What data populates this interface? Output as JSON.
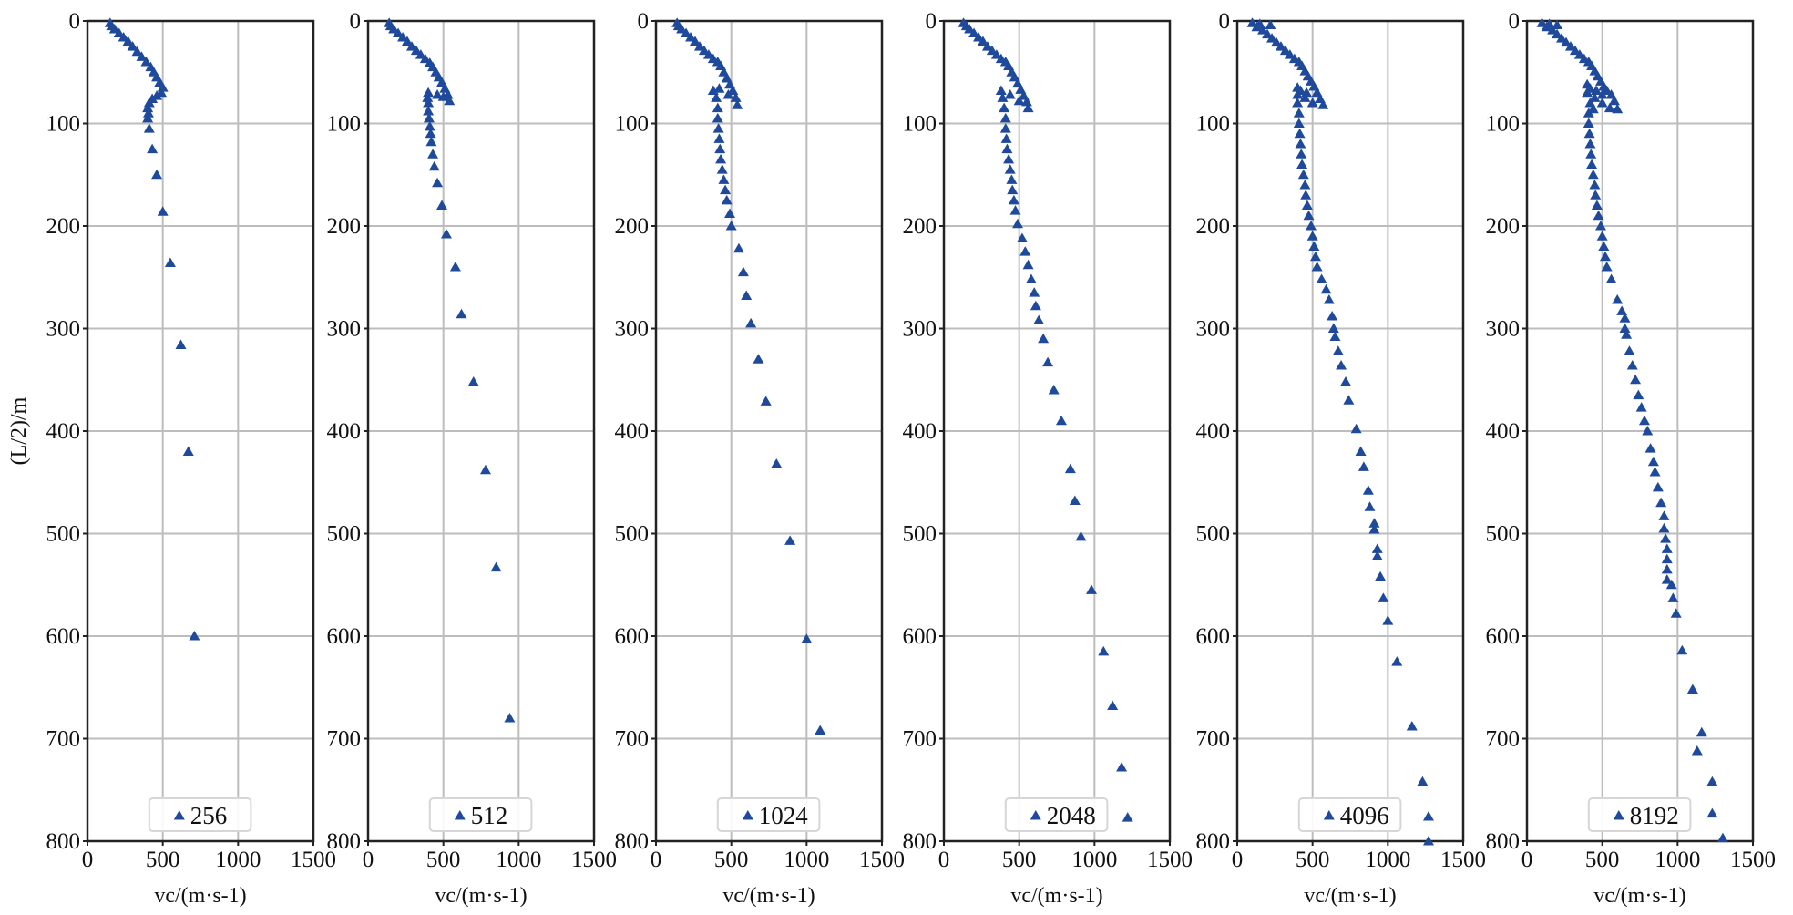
{
  "chart_data": [
    {
      "type": "scatter",
      "legend": "256",
      "marker": "triangle",
      "color": "#1f4a9c",
      "xlabel": "vc/(m·s-1)",
      "ylabel": "(L/2)/m",
      "xlim": [
        0,
        1500
      ],
      "ylim": [
        800,
        0
      ],
      "xticks": [
        0,
        500,
        1000,
        1500
      ],
      "yticks": [
        0,
        100,
        200,
        300,
        400,
        500,
        600,
        700,
        800
      ],
      "grid": true,
      "legend_position": "bottom-center",
      "points": [
        [
          150,
          2
        ],
        [
          160,
          5
        ],
        [
          180,
          8
        ],
        [
          210,
          12
        ],
        [
          240,
          16
        ],
        [
          270,
          20
        ],
        [
          300,
          25
        ],
        [
          330,
          30
        ],
        [
          360,
          35
        ],
        [
          390,
          40
        ],
        [
          420,
          45
        ],
        [
          440,
          50
        ],
        [
          460,
          55
        ],
        [
          480,
          60
        ],
        [
          500,
          65
        ],
        [
          490,
          70
        ],
        [
          460,
          73
        ],
        [
          430,
          76
        ],
        [
          410,
          80
        ],
        [
          400,
          85
        ],
        [
          405,
          90
        ],
        [
          400,
          95
        ],
        [
          410,
          105
        ],
        [
          430,
          125
        ],
        [
          460,
          150
        ],
        [
          500,
          186
        ],
        [
          550,
          236
        ],
        [
          620,
          316
        ],
        [
          670,
          420
        ],
        [
          710,
          600
        ]
      ]
    },
    {
      "type": "scatter",
      "legend": "512",
      "marker": "triangle",
      "color": "#1f4a9c",
      "xlabel": "vc/(m·s-1)",
      "ylabel": "",
      "xlim": [
        0,
        1500
      ],
      "ylim": [
        800,
        0
      ],
      "xticks": [
        0,
        500,
        1000,
        1500
      ],
      "yticks": [
        0,
        100,
        200,
        300,
        400,
        500,
        600,
        700,
        800
      ],
      "grid": true,
      "legend_position": "bottom-center",
      "points": [
        [
          140,
          2
        ],
        [
          150,
          5
        ],
        [
          170,
          8
        ],
        [
          200,
          12
        ],
        [
          230,
          16
        ],
        [
          260,
          20
        ],
        [
          290,
          25
        ],
        [
          320,
          29
        ],
        [
          350,
          33
        ],
        [
          380,
          37
        ],
        [
          410,
          41
        ],
        [
          430,
          45
        ],
        [
          450,
          50
        ],
        [
          470,
          55
        ],
        [
          490,
          60
        ],
        [
          510,
          66
        ],
        [
          530,
          72
        ],
        [
          540,
          78
        ],
        [
          500,
          74
        ],
        [
          460,
          72
        ],
        [
          400,
          70
        ],
        [
          395,
          75
        ],
        [
          400,
          80
        ],
        [
          400,
          88
        ],
        [
          405,
          95
        ],
        [
          410,
          103
        ],
        [
          415,
          110
        ],
        [
          420,
          118
        ],
        [
          430,
          130
        ],
        [
          440,
          142
        ],
        [
          460,
          158
        ],
        [
          490,
          180
        ],
        [
          520,
          208
        ],
        [
          580,
          240
        ],
        [
          620,
          286
        ],
        [
          700,
          352
        ],
        [
          780,
          438
        ],
        [
          850,
          533
        ],
        [
          940,
          680
        ]
      ]
    },
    {
      "type": "scatter",
      "legend": "1024",
      "marker": "triangle",
      "color": "#1f4a9c",
      "xlabel": "vc/(m·s-1)",
      "ylabel": "",
      "xlim": [
        0,
        1500
      ],
      "ylim": [
        800,
        0
      ],
      "xticks": [
        0,
        500,
        1000,
        1500
      ],
      "yticks": [
        0,
        100,
        200,
        300,
        400,
        500,
        600,
        700,
        800
      ],
      "grid": true,
      "legend_position": "bottom-center",
      "points": [
        [
          140,
          2
        ],
        [
          150,
          5
        ],
        [
          170,
          8
        ],
        [
          200,
          12
        ],
        [
          230,
          16
        ],
        [
          260,
          20
        ],
        [
          290,
          25
        ],
        [
          320,
          29
        ],
        [
          350,
          33
        ],
        [
          380,
          37
        ],
        [
          410,
          40
        ],
        [
          430,
          44
        ],
        [
          450,
          50
        ],
        [
          470,
          56
        ],
        [
          490,
          62
        ],
        [
          510,
          68
        ],
        [
          530,
          75
        ],
        [
          540,
          82
        ],
        [
          480,
          72
        ],
        [
          420,
          66
        ],
        [
          380,
          68
        ],
        [
          400,
          75
        ],
        [
          410,
          85
        ],
        [
          410,
          95
        ],
        [
          415,
          105
        ],
        [
          420,
          115
        ],
        [
          425,
          125
        ],
        [
          430,
          135
        ],
        [
          440,
          145
        ],
        [
          450,
          155
        ],
        [
          460,
          165
        ],
        [
          470,
          175
        ],
        [
          490,
          188
        ],
        [
          500,
          200
        ],
        [
          550,
          222
        ],
        [
          580,
          245
        ],
        [
          600,
          268
        ],
        [
          630,
          295
        ],
        [
          680,
          330
        ],
        [
          730,
          371
        ],
        [
          800,
          432
        ],
        [
          890,
          507
        ],
        [
          1000,
          603
        ],
        [
          1090,
          692
        ]
      ]
    },
    {
      "type": "scatter",
      "legend": "2048",
      "marker": "triangle",
      "color": "#1f4a9c",
      "xlabel": "vc/(m·s-1)",
      "ylabel": "",
      "xlim": [
        0,
        1500
      ],
      "ylim": [
        800,
        0
      ],
      "xticks": [
        0,
        500,
        1000,
        1500
      ],
      "yticks": [
        0,
        100,
        200,
        300,
        400,
        500,
        600,
        700,
        800
      ],
      "grid": true,
      "legend_position": "bottom-center",
      "points": [
        [
          130,
          2
        ],
        [
          150,
          5
        ],
        [
          170,
          8
        ],
        [
          200,
          12
        ],
        [
          230,
          16
        ],
        [
          260,
          20
        ],
        [
          290,
          25
        ],
        [
          320,
          29
        ],
        [
          350,
          33
        ],
        [
          380,
          37
        ],
        [
          410,
          40
        ],
        [
          430,
          44
        ],
        [
          450,
          50
        ],
        [
          470,
          55
        ],
        [
          490,
          61
        ],
        [
          510,
          67
        ],
        [
          530,
          73
        ],
        [
          550,
          79
        ],
        [
          560,
          85
        ],
        [
          500,
          78
        ],
        [
          440,
          72
        ],
        [
          380,
          68
        ],
        [
          390,
          75
        ],
        [
          400,
          85
        ],
        [
          410,
          95
        ],
        [
          410,
          105
        ],
        [
          415,
          115
        ],
        [
          420,
          125
        ],
        [
          430,
          135
        ],
        [
          440,
          145
        ],
        [
          450,
          155
        ],
        [
          455,
          165
        ],
        [
          465,
          175
        ],
        [
          475,
          185
        ],
        [
          490,
          198
        ],
        [
          520,
          212
        ],
        [
          540,
          225
        ],
        [
          560,
          238
        ],
        [
          580,
          252
        ],
        [
          600,
          265
        ],
        [
          610,
          278
        ],
        [
          630,
          292
        ],
        [
          660,
          310
        ],
        [
          690,
          333
        ],
        [
          730,
          360
        ],
        [
          780,
          390
        ],
        [
          840,
          437
        ],
        [
          870,
          468
        ],
        [
          910,
          503
        ],
        [
          980,
          555
        ],
        [
          1060,
          615
        ],
        [
          1120,
          668
        ],
        [
          1180,
          728
        ],
        [
          1220,
          777
        ]
      ]
    },
    {
      "type": "scatter",
      "legend": "4096",
      "marker": "triangle",
      "color": "#1f4a9c",
      "xlabel": "vc/(m·s-1)",
      "ylabel": "",
      "xlim": [
        0,
        1500
      ],
      "ylim": [
        800,
        0
      ],
      "xticks": [
        0,
        500,
        1000,
        1500
      ],
      "yticks": [
        0,
        100,
        200,
        300,
        400,
        500,
        600,
        700,
        800
      ],
      "grid": true,
      "legend_position": "bottom-center",
      "points": [
        [
          100,
          2
        ],
        [
          150,
          3
        ],
        [
          220,
          4
        ],
        [
          130,
          6
        ],
        [
          170,
          9
        ],
        [
          200,
          13
        ],
        [
          230,
          17
        ],
        [
          260,
          21
        ],
        [
          290,
          25
        ],
        [
          320,
          29
        ],
        [
          350,
          33
        ],
        [
          380,
          37
        ],
        [
          410,
          40
        ],
        [
          430,
          44
        ],
        [
          450,
          49
        ],
        [
          470,
          54
        ],
        [
          490,
          59
        ],
        [
          510,
          64
        ],
        [
          530,
          70
        ],
        [
          550,
          76
        ],
        [
          570,
          82
        ],
        [
          500,
          80
        ],
        [
          450,
          75
        ],
        [
          400,
          65
        ],
        [
          400,
          72
        ],
        [
          420,
          68
        ],
        [
          460,
          70
        ],
        [
          400,
          80
        ],
        [
          410,
          90
        ],
        [
          410,
          100
        ],
        [
          415,
          110
        ],
        [
          420,
          120
        ],
        [
          425,
          130
        ],
        [
          430,
          140
        ],
        [
          440,
          150
        ],
        [
          450,
          160
        ],
        [
          455,
          170
        ],
        [
          465,
          180
        ],
        [
          475,
          190
        ],
        [
          490,
          200
        ],
        [
          500,
          210
        ],
        [
          510,
          220
        ],
        [
          520,
          230
        ],
        [
          530,
          240
        ],
        [
          560,
          252
        ],
        [
          590,
          262
        ],
        [
          610,
          272
        ],
        [
          630,
          288
        ],
        [
          640,
          300
        ],
        [
          650,
          308
        ],
        [
          670,
          322
        ],
        [
          690,
          336
        ],
        [
          720,
          352
        ],
        [
          740,
          370
        ],
        [
          790,
          398
        ],
        [
          820,
          420
        ],
        [
          840,
          435
        ],
        [
          870,
          458
        ],
        [
          880,
          474
        ],
        [
          910,
          490
        ],
        [
          910,
          496
        ],
        [
          930,
          515
        ],
        [
          930,
          522
        ],
        [
          950,
          542
        ],
        [
          970,
          563
        ],
        [
          1000,
          585
        ],
        [
          1060,
          625
        ],
        [
          1160,
          688
        ],
        [
          1230,
          742
        ],
        [
          1270,
          776
        ],
        [
          1270,
          800
        ]
      ]
    },
    {
      "type": "scatter",
      "legend": "8192",
      "marker": "triangle",
      "color": "#1f4a9c",
      "xlabel": "vc/(m·s-1)",
      "ylabel": "",
      "xlim": [
        0,
        1500
      ],
      "ylim": [
        800,
        0
      ],
      "xticks": [
        0,
        500,
        1000,
        1500
      ],
      "yticks": [
        0,
        100,
        200,
        300,
        400,
        500,
        600,
        700,
        800
      ],
      "grid": true,
      "legend_position": "bottom-center",
      "points": [
        [
          100,
          2
        ],
        [
          150,
          3
        ],
        [
          200,
          4
        ],
        [
          130,
          6
        ],
        [
          170,
          9
        ],
        [
          200,
          13
        ],
        [
          230,
          17
        ],
        [
          260,
          21
        ],
        [
          290,
          25
        ],
        [
          320,
          29
        ],
        [
          350,
          33
        ],
        [
          380,
          37
        ],
        [
          410,
          40
        ],
        [
          430,
          44
        ],
        [
          450,
          49
        ],
        [
          470,
          54
        ],
        [
          490,
          59
        ],
        [
          510,
          64
        ],
        [
          530,
          68
        ],
        [
          560,
          72
        ],
        [
          580,
          78
        ],
        [
          600,
          86
        ],
        [
          550,
          85
        ],
        [
          500,
          80
        ],
        [
          450,
          75
        ],
        [
          400,
          62
        ],
        [
          400,
          70
        ],
        [
          420,
          66
        ],
        [
          460,
          68
        ],
        [
          500,
          72
        ],
        [
          420,
          80
        ],
        [
          440,
          86
        ],
        [
          410,
          90
        ],
        [
          410,
          100
        ],
        [
          415,
          110
        ],
        [
          420,
          120
        ],
        [
          425,
          130
        ],
        [
          430,
          140
        ],
        [
          440,
          150
        ],
        [
          450,
          160
        ],
        [
          455,
          170
        ],
        [
          465,
          180
        ],
        [
          475,
          190
        ],
        [
          490,
          200
        ],
        [
          500,
          210
        ],
        [
          510,
          220
        ],
        [
          520,
          230
        ],
        [
          530,
          240
        ],
        [
          560,
          252
        ],
        [
          600,
          272
        ],
        [
          630,
          283
        ],
        [
          650,
          290
        ],
        [
          650,
          300
        ],
        [
          660,
          306
        ],
        [
          680,
          322
        ],
        [
          700,
          336
        ],
        [
          720,
          350
        ],
        [
          740,
          365
        ],
        [
          760,
          377
        ],
        [
          780,
          390
        ],
        [
          800,
          400
        ],
        [
          820,
          417
        ],
        [
          840,
          430
        ],
        [
          850,
          440
        ],
        [
          870,
          455
        ],
        [
          890,
          470
        ],
        [
          910,
          483
        ],
        [
          910,
          495
        ],
        [
          920,
          505
        ],
        [
          930,
          515
        ],
        [
          930,
          525
        ],
        [
          930,
          535
        ],
        [
          930,
          545
        ],
        [
          960,
          550
        ],
        [
          970,
          563
        ],
        [
          990,
          578
        ],
        [
          1030,
          614
        ],
        [
          1100,
          652
        ],
        [
          1160,
          694
        ],
        [
          1130,
          712
        ],
        [
          1230,
          742
        ],
        [
          1230,
          773
        ],
        [
          1300,
          797
        ]
      ]
    }
  ]
}
